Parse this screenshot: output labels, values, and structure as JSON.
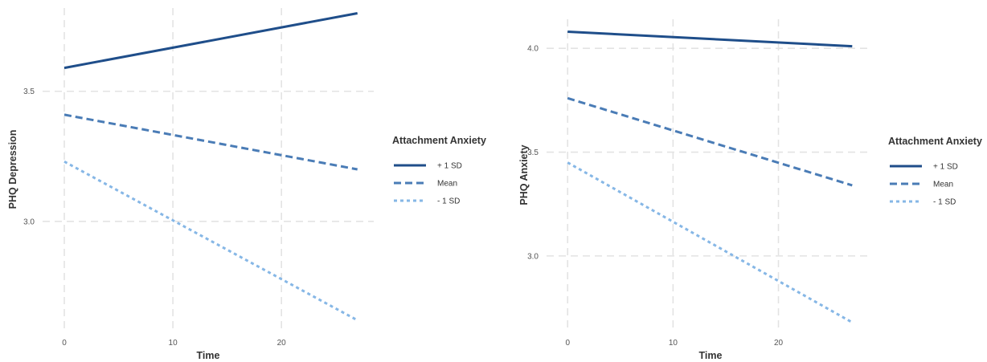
{
  "chart_data": [
    {
      "type": "line",
      "xlabel": "Time",
      "ylabel": "PHQ Depression",
      "xlim": [
        -2,
        28.5
      ],
      "ylim": [
        2.58,
        3.82
      ],
      "x_ticks": [
        0,
        10,
        20
      ],
      "x_tick_labels": [
        "0",
        "10",
        "20"
      ],
      "y_ticks": [
        3.0,
        3.5
      ],
      "y_tick_labels": [
        "3.0",
        "3.5"
      ],
      "grid": true,
      "legend_title": "Attachment Anxiety",
      "legend_position": "right",
      "series": [
        {
          "name": "+ 1 SD",
          "x": [
            0,
            27
          ],
          "values": [
            3.59,
            3.8
          ],
          "color": "#1f4e8a",
          "dash": "solid"
        },
        {
          "name": "Mean",
          "x": [
            0,
            27
          ],
          "values": [
            3.41,
            3.2
          ],
          "color": "#4a7cb6",
          "dash": "dashed"
        },
        {
          "name": "- 1 SD",
          "x": [
            0,
            27
          ],
          "values": [
            3.23,
            2.62
          ],
          "color": "#86b7e6",
          "dash": "dotted"
        }
      ]
    },
    {
      "type": "line",
      "xlabel": "Time",
      "ylabel": "PHQ Anxiety",
      "xlim": [
        -2,
        28.5
      ],
      "ylim": [
        2.64,
        4.14
      ],
      "x_ticks": [
        0,
        10,
        20
      ],
      "x_tick_labels": [
        "0",
        "10",
        "20"
      ],
      "y_ticks": [
        3.0,
        3.5,
        4.0
      ],
      "y_tick_labels": [
        "3.0",
        "3.5",
        "4.0"
      ],
      "grid": true,
      "legend_title": "Attachment Anxiety",
      "legend_position": "right",
      "series": [
        {
          "name": "+ 1 SD",
          "x": [
            0,
            27
          ],
          "values": [
            4.08,
            4.01
          ],
          "color": "#1f4e8a",
          "dash": "solid"
        },
        {
          "name": "Mean",
          "x": [
            0,
            27
          ],
          "values": [
            3.76,
            3.34
          ],
          "color": "#4a7cb6",
          "dash": "dashed"
        },
        {
          "name": "- 1 SD",
          "x": [
            0,
            27
          ],
          "values": [
            3.45,
            2.68
          ],
          "color": "#86b7e6",
          "dash": "dotted"
        }
      ]
    }
  ]
}
